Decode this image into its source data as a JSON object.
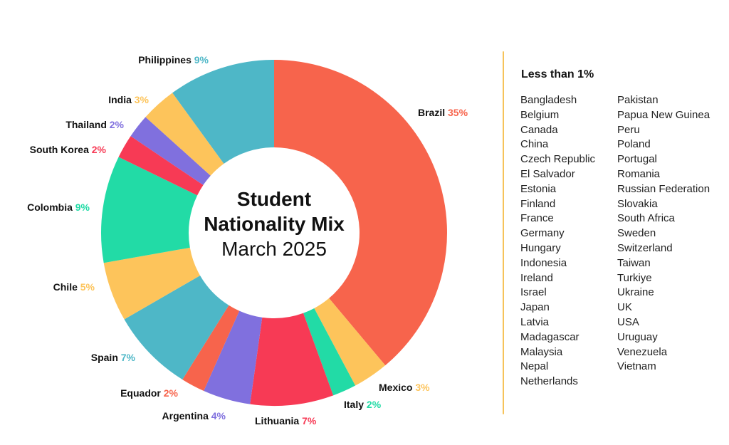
{
  "chart_data": {
    "type": "pie",
    "variant": "donut",
    "title": "Student Nationality Mix",
    "subtitle": "March 2025",
    "slices": [
      {
        "label": "Brazil",
        "value": 35,
        "display": "35%",
        "color": "#f7644c"
      },
      {
        "label": "Mexico",
        "value": 3,
        "display": "3%",
        "color": "#fdc45b"
      },
      {
        "label": "Italy",
        "value": 2,
        "display": "2%",
        "color": "#22dba6"
      },
      {
        "label": "Lithuania",
        "value": 7,
        "display": "7%",
        "color": "#f73a55"
      },
      {
        "label": "Argentina",
        "value": 4,
        "display": "4%",
        "color": "#8070de"
      },
      {
        "label": "Equador",
        "value": 2,
        "display": "2%",
        "color": "#f7644c"
      },
      {
        "label": "Spain",
        "value": 7,
        "display": "7%",
        "color": "#4eb7c7"
      },
      {
        "label": "Chile",
        "value": 5,
        "display": "5%",
        "color": "#fdc45b"
      },
      {
        "label": "Colombia",
        "value": 9,
        "display": "9%",
        "color": "#22dba6"
      },
      {
        "label": "South Korea",
        "value": 2,
        "display": "2%",
        "color": "#f73a55"
      },
      {
        "label": "Thailand",
        "value": 2,
        "display": "2%",
        "color": "#8070de"
      },
      {
        "label": "India",
        "value": 3,
        "display": "3%",
        "color": "#fdc45b"
      },
      {
        "label": "Philippines",
        "value": 9,
        "display": "9%",
        "color": "#4eb7c7"
      }
    ],
    "other": {
      "title": "Less than 1%",
      "columns": [
        [
          "Bangladesh",
          "Belgium",
          "Canada",
          "China",
          "Czech Republic",
          "El Salvador",
          "Estonia",
          "Finland",
          "France",
          "Germany",
          "Hungary",
          "Indonesia",
          "Ireland",
          "Israel",
          "Japan",
          "Latvia",
          "Madagascar",
          "Malaysia",
          "Nepal",
          "Netherlands"
        ],
        [
          "Pakistan",
          "Papua New Guinea",
          "Peru",
          "Poland",
          "Portugal",
          "Romania",
          "Russian Federation",
          "Slovakia",
          "South Africa",
          "Sweden",
          "Switzerland",
          "Taiwan",
          "Turkiye",
          "Ukraine",
          "UK",
          "USA",
          "Uruguay",
          "Venezuela",
          "Vietnam"
        ]
      ]
    }
  }
}
